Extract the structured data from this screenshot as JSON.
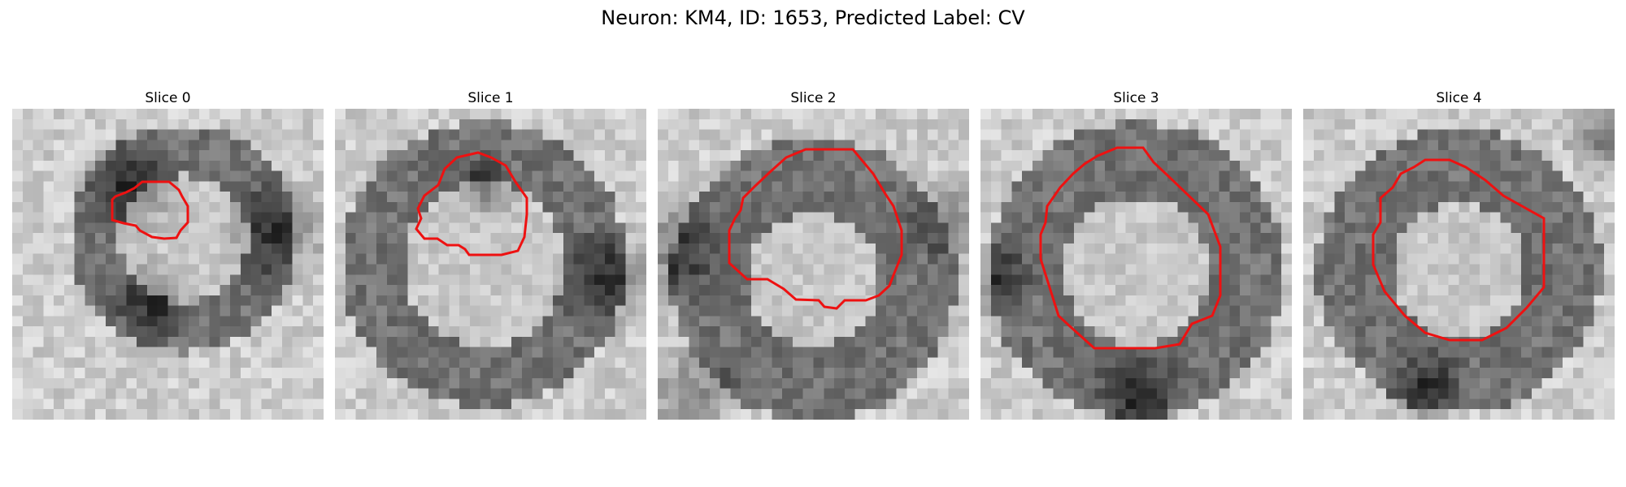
{
  "figure": {
    "title": "Neuron: KM4, ID: 1653, Predicted Label: CV",
    "contour_color": "#ee1111"
  },
  "slices": [
    {
      "label": "Slice 0"
    },
    {
      "label": "Slice 1"
    },
    {
      "label": "Slice 2"
    },
    {
      "label": "Slice 3"
    },
    {
      "label": "Slice 4"
    }
  ]
}
